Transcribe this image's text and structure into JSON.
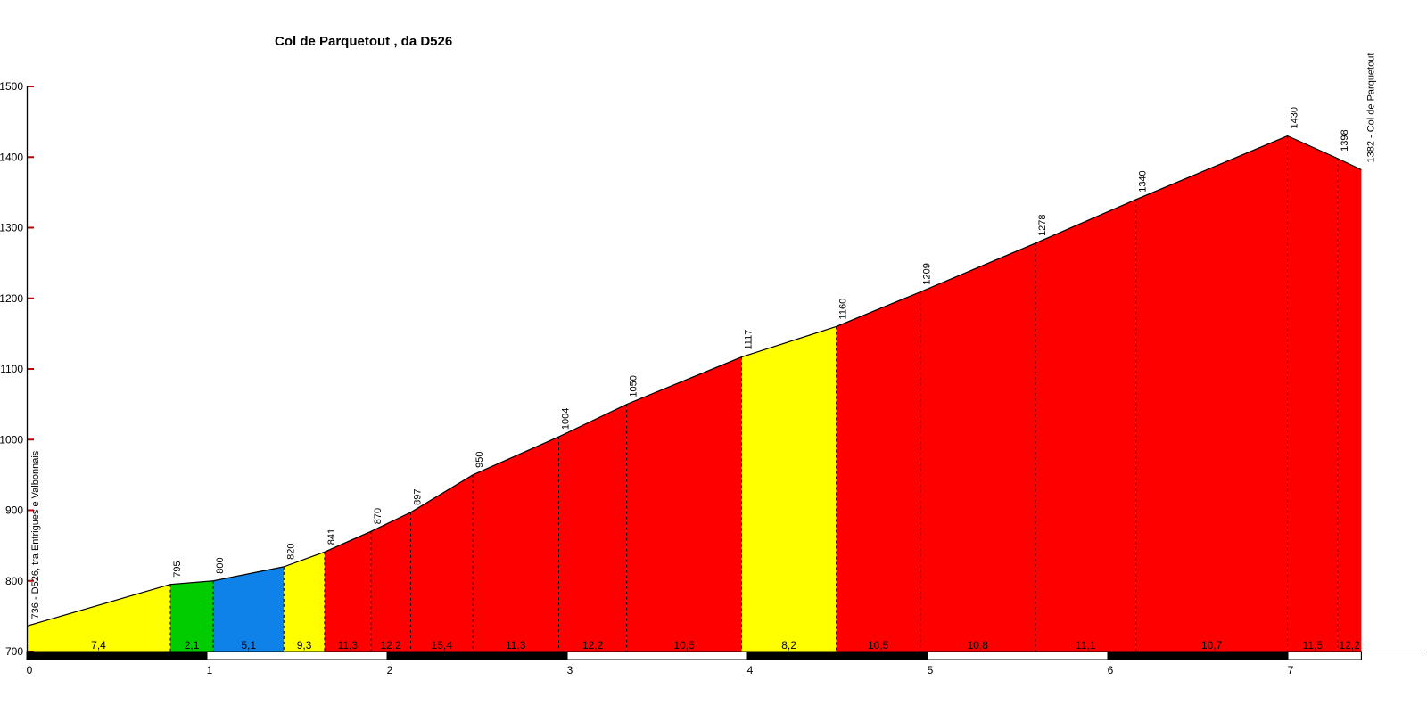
{
  "title": "Col de Parquetout , da D526",
  "chart_data": {
    "type": "area",
    "title": "Col de Parquetout , da D526",
    "xlabel": "",
    "ylabel": "",
    "xlim": [
      0,
      7.75
    ],
    "ylim": [
      700,
      1500
    ],
    "y_ticks": [
      700,
      800,
      900,
      1000,
      1100,
      1200,
      1300,
      1400,
      1500
    ],
    "x_ticks": [
      0,
      1,
      2,
      3,
      4,
      5,
      6,
      7
    ],
    "grid": false,
    "legend": false,
    "start_point": {
      "km": 0,
      "elev": 736,
      "label": "736 - D526, tra Entrigues e Valbonnais"
    },
    "end_label": "1382 - Col de Parquetout",
    "end_elev": 1382,
    "segments": [
      {
        "to_km": 0.797,
        "to_elev": 795,
        "grade_label": "7,4",
        "color": "yellow"
      },
      {
        "to_km": 1.035,
        "to_elev": 800,
        "grade_label": "2,1",
        "color": "green"
      },
      {
        "to_km": 1.427,
        "to_elev": 820,
        "grade_label": "5,1",
        "color": "blue"
      },
      {
        "to_km": 1.653,
        "to_elev": 841,
        "grade_label": "9,3",
        "color": "yellow"
      },
      {
        "to_km": 1.91,
        "to_elev": 870,
        "grade_label": "11,3",
        "color": "red"
      },
      {
        "to_km": 2.131,
        "to_elev": 897,
        "grade_label": "12,2",
        "color": "red"
      },
      {
        "to_km": 2.475,
        "to_elev": 950,
        "grade_label": "15,4",
        "color": "red"
      },
      {
        "to_km": 2.953,
        "to_elev": 1004,
        "grade_label": "11,3",
        "color": "red"
      },
      {
        "to_km": 3.33,
        "to_elev": 1050,
        "grade_label": "12,2",
        "color": "red"
      },
      {
        "to_km": 3.968,
        "to_elev": 1117,
        "grade_label": "10,5",
        "color": "red"
      },
      {
        "to_km": 4.493,
        "to_elev": 1160,
        "grade_label": "8,2",
        "color": "yellow"
      },
      {
        "to_km": 4.959,
        "to_elev": 1209,
        "grade_label": "10,5",
        "color": "red"
      },
      {
        "to_km": 5.598,
        "to_elev": 1278,
        "grade_label": "10,8",
        "color": "red"
      },
      {
        "to_km": 6.157,
        "to_elev": 1340,
        "grade_label": "11,1",
        "color": "red"
      },
      {
        "to_km": 6.998,
        "to_elev": 1430,
        "grade_label": "10,7",
        "color": "red"
      },
      {
        "to_km": 7.276,
        "to_elev": 1398,
        "grade_label": "11,5",
        "color": "red"
      },
      {
        "to_km": 7.408,
        "to_elev": 1382,
        "grade_label": "12,2",
        "color": "red"
      }
    ],
    "colors": {
      "yellow": "#FFFF00",
      "green": "#00CC00",
      "blue": "#0E82E8",
      "red": "#FF0000",
      "tick": "#C00000",
      "outline": "#000000",
      "text": "#000000"
    }
  }
}
